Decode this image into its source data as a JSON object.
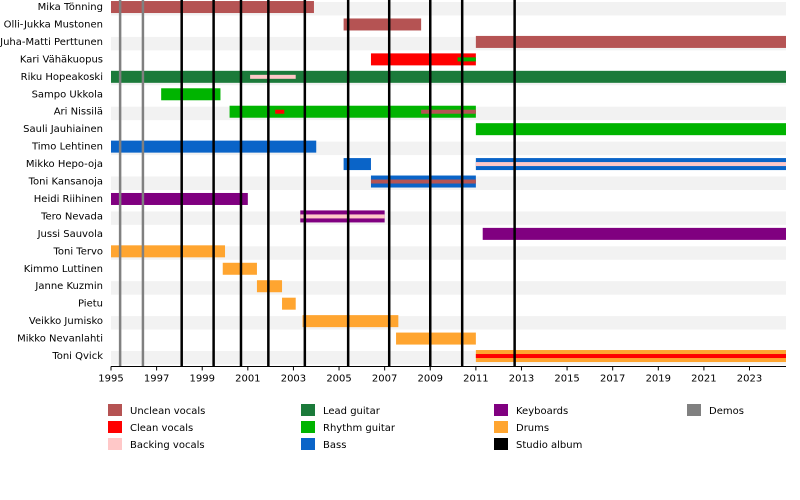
{
  "chart_data": {
    "type": "timeline",
    "xlim": [
      1995,
      2024.6
    ],
    "xticks": [
      1995,
      1997,
      1999,
      2001,
      2003,
      2005,
      2007,
      2009,
      2011,
      2013,
      2015,
      2017,
      2019,
      2021,
      2023
    ],
    "roles": [
      {
        "name": "Unclean vocals",
        "color": "#b55353"
      },
      {
        "name": "Clean vocals",
        "color": "#ff0000"
      },
      {
        "name": "Backing vocals",
        "color": "#ffc8c8"
      },
      {
        "name": "Lead guitar",
        "color": "#1b7a3a"
      },
      {
        "name": "Rhythm guitar",
        "color": "#00b400"
      },
      {
        "name": "Bass",
        "color": "#0a64c8"
      },
      {
        "name": "Keyboards",
        "color": "#800080"
      },
      {
        "name": "Drums",
        "color": "#ffa530"
      },
      {
        "name": "Studio album",
        "color": "#000000",
        "lines": [
          1998.1,
          1999.5,
          2000.7,
          2001.9,
          2003.5,
          2005.4,
          2007.2,
          2009.0,
          2010.4,
          2012.7
        ]
      },
      {
        "name": "Demos",
        "color": "#808080",
        "lines": [
          1995.4,
          1996.4
        ]
      }
    ],
    "members": [
      {
        "name": "Mika Tönning",
        "bars": [
          {
            "role": "Unclean vocals",
            "start": 1995,
            "end": 2003.9
          }
        ]
      },
      {
        "name": "Olli-Jukka Mustonen",
        "bars": [
          {
            "role": "Unclean vocals",
            "start": 2005.2,
            "end": 2008.6
          }
        ]
      },
      {
        "name": "Juha-Matti Perttunen",
        "bars": [
          {
            "role": "Unclean vocals",
            "start": 2011.0,
            "end": 2024.6
          }
        ]
      },
      {
        "name": "Kari Vähäkuopus",
        "bars": [
          {
            "role": "Clean vocals",
            "start": 2006.4,
            "end": 2011.0
          },
          {
            "role": "Rhythm guitar",
            "start": 2010.2,
            "end": 2011.0,
            "thin": true
          }
        ]
      },
      {
        "name": "Riku Hopeakoski",
        "bars": [
          {
            "role": "Lead guitar",
            "start": 1995,
            "end": 2024.6
          },
          {
            "role": "Backing vocals",
            "start": 2001.1,
            "end": 2003.1,
            "thin": true
          }
        ]
      },
      {
        "name": "Sampo Ukkola",
        "bars": [
          {
            "role": "Rhythm guitar",
            "start": 1997.2,
            "end": 1999.8
          }
        ]
      },
      {
        "name": "Ari Nissilä",
        "bars": [
          {
            "role": "Rhythm guitar",
            "start": 2000.2,
            "end": 2011.0
          },
          {
            "role": "Clean vocals",
            "start": 2002.2,
            "end": 2002.6,
            "thin": true
          },
          {
            "role": "Unclean vocals",
            "start": 2008.6,
            "end": 2011.0,
            "thin": true
          }
        ]
      },
      {
        "name": "Sauli Jauhiainen",
        "bars": [
          {
            "role": "Rhythm guitar",
            "start": 2011.0,
            "end": 2024.6
          }
        ]
      },
      {
        "name": "Timo Lehtinen",
        "bars": [
          {
            "role": "Bass",
            "start": 1995,
            "end": 2004.0
          }
        ]
      },
      {
        "name": "Mikko Hepo-oja",
        "bars": [
          {
            "role": "Bass",
            "start": 2005.2,
            "end": 2006.4
          },
          {
            "role": "Bass",
            "start": 2011.0,
            "end": 2024.6
          },
          {
            "role": "Backing vocals",
            "start": 2011.0,
            "end": 2024.6,
            "thin": true
          }
        ]
      },
      {
        "name": "Toni Kansanoja",
        "bars": [
          {
            "role": "Bass",
            "start": 2006.4,
            "end": 2011.0
          },
          {
            "role": "Unclean vocals",
            "start": 2006.4,
            "end": 2011.0,
            "thin": true
          }
        ]
      },
      {
        "name": "Heidi Riihinen",
        "bars": [
          {
            "role": "Keyboards",
            "start": 1995,
            "end": 2001.0
          }
        ]
      },
      {
        "name": "Tero Nevada",
        "bars": [
          {
            "role": "Keyboards",
            "start": 2003.3,
            "end": 2007.0
          },
          {
            "role": "Backing vocals",
            "start": 2003.3,
            "end": 2007.0,
            "thin": true
          }
        ]
      },
      {
        "name": "Jussi Sauvola",
        "bars": [
          {
            "role": "Keyboards",
            "start": 2011.3,
            "end": 2024.6
          }
        ]
      },
      {
        "name": "Toni Tervo",
        "bars": [
          {
            "role": "Drums",
            "start": 1995,
            "end": 2000.0
          }
        ]
      },
      {
        "name": "Kimmo Luttinen",
        "bars": [
          {
            "role": "Drums",
            "start": 1999.9,
            "end": 2001.4
          }
        ]
      },
      {
        "name": "Janne Kuzmin",
        "bars": [
          {
            "role": "Drums",
            "start": 2001.4,
            "end": 2002.5
          }
        ]
      },
      {
        "name": "Pietu",
        "bars": [
          {
            "role": "Drums",
            "start": 2002.5,
            "end": 2003.1
          }
        ]
      },
      {
        "name": "Veikko Jumisko",
        "bars": [
          {
            "role": "Drums",
            "start": 2003.4,
            "end": 2007.6
          }
        ]
      },
      {
        "name": "Mikko Nevanlahti",
        "bars": [
          {
            "role": "Drums",
            "start": 2007.5,
            "end": 2011.0
          }
        ]
      },
      {
        "name": "Toni Qvick",
        "bars": [
          {
            "role": "Drums",
            "start": 2011.0,
            "end": 2024.6
          },
          {
            "role": "Clean vocals",
            "start": 2011.0,
            "end": 2024.6,
            "thin": true
          }
        ]
      }
    ]
  }
}
